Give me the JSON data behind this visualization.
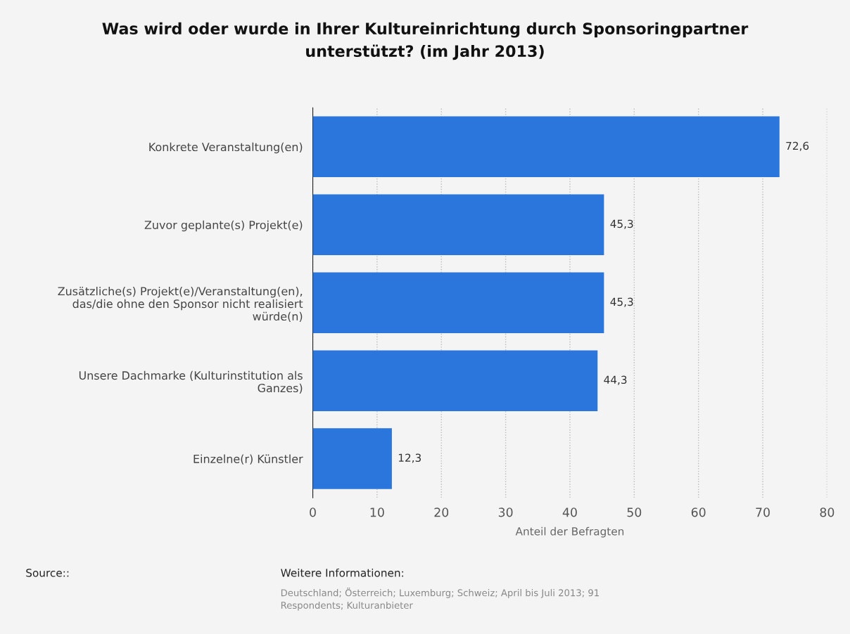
{
  "chart_data": {
    "type": "bar",
    "orientation": "horizontal",
    "title": "Was wird oder wurde in Ihrer Kultureinrichtung durch Sponsoringpartner\nunterstützt? (im Jahr 2013)",
    "xlabel": "Anteil der Befragten",
    "categories": [
      "Konkrete Veranstaltung(en)",
      "Zuvor geplante(s) Projekt(e)",
      "Zusätzliche(s) Projekt(e)/Veranstaltung(en),\ndas/die ohne den Sponsor nicht realisiert\nwürde(n)",
      "Unsere Dachmarke (Kulturinstitution als\nGanzes)",
      "Einzelne(r) Künstler"
    ],
    "values": [
      72.6,
      45.3,
      45.3,
      44.3,
      12.3
    ],
    "value_labels": [
      "72,6",
      "45,3",
      "45,3",
      "44,3",
      "12,3"
    ],
    "color": "#2a76dd",
    "xlim": [
      0,
      80
    ],
    "xticks": [
      0,
      10,
      20,
      30,
      40,
      50,
      60,
      70,
      80
    ],
    "grid": "x",
    "legend": false,
    "annotations": [
      "Source::",
      "Weitere Informationen:",
      "Deutschland; Österreich; Luxemburg; Schweiz; April bis Juli 2013; 91\nRespondents; Kulturanbieter"
    ]
  }
}
